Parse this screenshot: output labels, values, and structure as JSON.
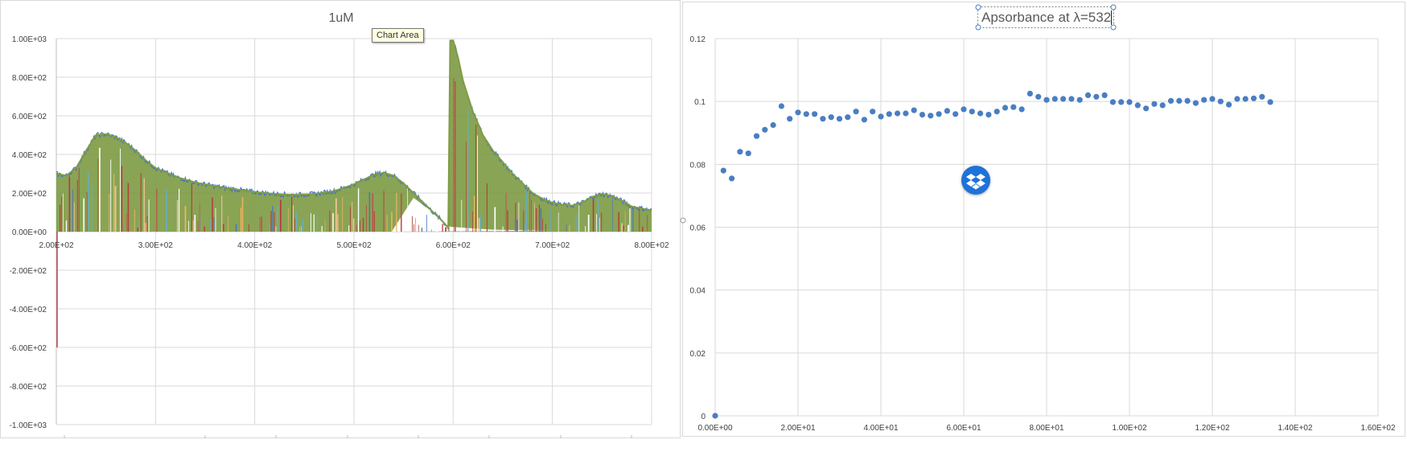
{
  "tooltip": "Chart Area",
  "colors": {
    "spectrum_green": "#7f9c45",
    "spectrum_red": "#b5403a",
    "spectrum_blue": "#4472c4",
    "spectrum_orange": "#eeb45f",
    "spectrum_teal": "#65aec3",
    "scatter_blue": "#4a7ec2",
    "grid": "#d9d9d9",
    "dropbox": "#1e72d8"
  },
  "icons": {
    "dropbox": "dropbox-icon"
  },
  "chart_data": [
    {
      "type": "area",
      "title": "1uM",
      "xlabel": "",
      "ylabel": "",
      "xlim": [
        200,
        800
      ],
      "ylim": [
        -1000,
        1000
      ],
      "grid": true,
      "legend": "none",
      "x_tick_labels": [
        "2.00E+02",
        "3.00E+02",
        "4.00E+02",
        "5.00E+02",
        "6.00E+02",
        "7.00E+02",
        "8.00E+02"
      ],
      "y_tick_labels": [
        "1.00E+03",
        "8.00E+02",
        "6.00E+02",
        "4.00E+02",
        "2.00E+02",
        "0.00E+00",
        "-2.00E+02",
        "-4.00E+02",
        "-6.00E+02",
        "-8.00E+02",
        "-1.00E+03"
      ],
      "envelope": {
        "x": [
          200,
          210,
          220,
          230,
          240,
          250,
          260,
          270,
          280,
          290,
          300,
          320,
          340,
          360,
          380,
          400,
          420,
          440,
          460,
          480,
          500,
          510,
          520,
          530,
          540,
          550,
          560,
          570,
          580,
          590,
          595,
          597,
          600,
          605,
          610,
          620,
          630,
          640,
          650,
          660,
          670,
          680,
          690,
          700,
          710,
          720,
          730,
          740,
          750,
          760,
          770,
          780,
          790,
          800
        ],
        "y": [
          300,
          290,
          330,
          420,
          500,
          505,
          490,
          460,
          420,
          370,
          330,
          285,
          255,
          235,
          220,
          205,
          195,
          190,
          195,
          210,
          245,
          270,
          295,
          305,
          290,
          250,
          200,
          150,
          100,
          50,
          20,
          990,
          990,
          900,
          780,
          620,
          500,
          420,
          360,
          300,
          250,
          200,
          170,
          150,
          140,
          135,
          150,
          180,
          195,
          185,
          160,
          130,
          120,
          110
        ]
      }
    },
    {
      "type": "scatter",
      "title": "Apsorbance at λ=532",
      "xlabel": "",
      "ylabel": "",
      "xlim": [
        0,
        160
      ],
      "ylim": [
        0,
        0.12
      ],
      "grid": true,
      "legend": "none",
      "x_tick_labels": [
        "0.00E+00",
        "2.00E+01",
        "4.00E+01",
        "6.00E+01",
        "8.00E+01",
        "1.00E+02",
        "1.20E+02",
        "1.40E+02",
        "1.60E+02"
      ],
      "y_tick_labels": [
        "0.12",
        "0.1",
        "0.08",
        "0.06",
        "0.04",
        "0.02",
        "0"
      ],
      "x": [
        0,
        2,
        4,
        6,
        8,
        10,
        12,
        14,
        16,
        18,
        20,
        22,
        24,
        26,
        28,
        30,
        32,
        34,
        36,
        38,
        40,
        42,
        44,
        46,
        48,
        50,
        52,
        54,
        56,
        58,
        60,
        62,
        64,
        66,
        68,
        70,
        72,
        74,
        76,
        78,
        80,
        82,
        84,
        86,
        88,
        90,
        92,
        94,
        96,
        98,
        100,
        102,
        104,
        106,
        108,
        110,
        112,
        114,
        116,
        118,
        120,
        122,
        124,
        126,
        128,
        130,
        132,
        134
      ],
      "y": [
        0,
        0.078,
        0.0755,
        0.084,
        0.0835,
        0.089,
        0.091,
        0.0925,
        0.0985,
        0.0945,
        0.0965,
        0.096,
        0.096,
        0.0945,
        0.095,
        0.0945,
        0.095,
        0.0968,
        0.0942,
        0.0968,
        0.0952,
        0.096,
        0.0962,
        0.0962,
        0.0972,
        0.0958,
        0.0955,
        0.096,
        0.097,
        0.096,
        0.0975,
        0.0968,
        0.0962,
        0.0958,
        0.0968,
        0.098,
        0.0982,
        0.0975,
        0.1025,
        0.1015,
        0.1005,
        0.1008,
        0.1008,
        0.1008,
        0.1005,
        0.102,
        0.1015,
        0.102,
        0.0998,
        0.0998,
        0.0998,
        0.0988,
        0.0978,
        0.0992,
        0.0988,
        0.1002,
        0.1002,
        0.1002,
        0.0995,
        0.1005,
        0.1008,
        0.1,
        0.099,
        0.1008,
        0.1008,
        0.101,
        0.1015,
        0.0998
      ]
    }
  ]
}
